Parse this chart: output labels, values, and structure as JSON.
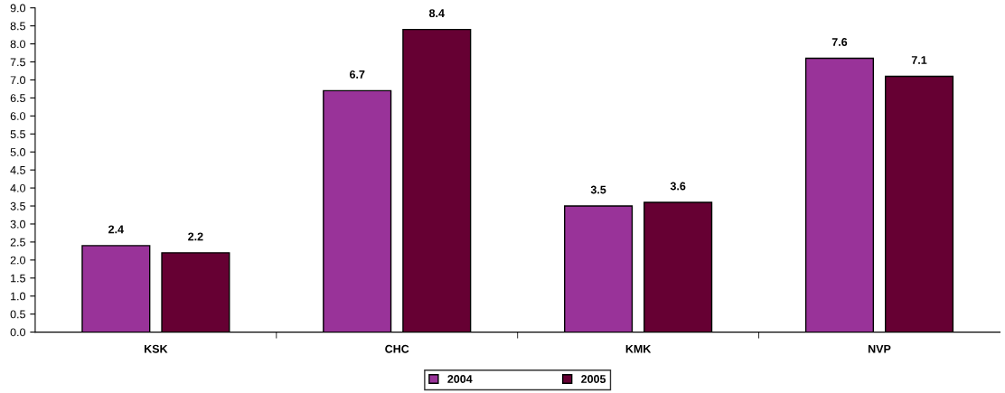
{
  "chart_data": {
    "type": "bar",
    "categories": [
      "KSK",
      "CHC",
      "KMK",
      "NVP"
    ],
    "series": [
      {
        "name": "2004",
        "color": "#993399",
        "values": [
          2.4,
          6.7,
          3.5,
          7.6
        ]
      },
      {
        "name": "2005",
        "color": "#660033",
        "values": [
          2.2,
          8.4,
          3.6,
          7.1
        ]
      }
    ],
    "ylim": [
      0,
      9
    ],
    "yticks": [
      {
        "value": 0,
        "label": "0.0"
      },
      {
        "value": 0.5,
        "label": "0.5"
      },
      {
        "value": 1,
        "label": "1.0"
      },
      {
        "value": 1.5,
        "label": "1.5"
      },
      {
        "value": 2,
        "label": "2.0"
      },
      {
        "value": 2.5,
        "label": "2.5"
      },
      {
        "value": 3,
        "label": "3.0"
      },
      {
        "value": 3.5,
        "label": "3.5"
      },
      {
        "value": 4,
        "label": "4.0"
      },
      {
        "value": 4.5,
        "label": "4.5"
      },
      {
        "value": 5,
        "label": "5.0"
      },
      {
        "value": 5.5,
        "label": "5.5"
      },
      {
        "value": 6,
        "label": "6.0"
      },
      {
        "value": 6.5,
        "label": "6.5"
      },
      {
        "value": 7,
        "label": "7.0"
      },
      {
        "value": 7.5,
        "label": "7.5"
      },
      {
        "value": 8,
        "label": "8.0"
      },
      {
        "value": 8.5,
        "label": "8.5"
      },
      {
        "value": 9,
        "label": "9.0"
      }
    ],
    "data_labels": true,
    "grid": false,
    "legend": "bottom"
  }
}
